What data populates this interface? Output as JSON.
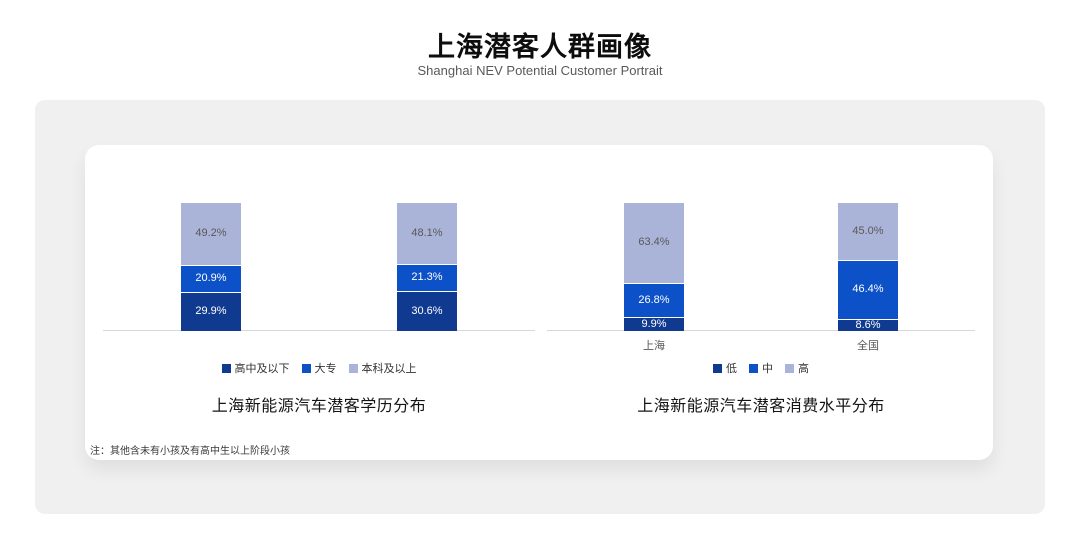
{
  "page": {
    "title": "上海潜客人群画像",
    "subtitle": "Shanghai NEV Potential Customer Portrait",
    "note": "注：其他含未有小孩及有高中生以上阶段小孩"
  },
  "colors": {
    "series_dark_blue": "#103990",
    "series_medium_blue": "#0c51c8",
    "series_light_periwinkle": "#aab4d8",
    "axis_line": "#d9d9d9",
    "panel_gray": "#f0f0f1",
    "card_white": "#ffffff"
  },
  "chart_data": [
    {
      "type": "bar",
      "stacked": true,
      "title": "上海新能源汽车潜客学历分布",
      "categories": [
        "",
        ""
      ],
      "series": [
        {
          "name": "高中及以下",
          "color": "#103990",
          "label_color": "#ffffff",
          "values": [
            29.9,
            30.6
          ]
        },
        {
          "name": "大专",
          "color": "#0c51c8",
          "label_color": "#ffffff",
          "values": [
            20.9,
            21.3
          ]
        },
        {
          "name": "本科及以上",
          "color": "#aab4d8",
          "label_color": "#595959",
          "values": [
            49.2,
            48.1
          ]
        }
      ],
      "xlabel": "",
      "ylabel": "",
      "ylim": [
        0,
        100
      ],
      "value_suffix": "%",
      "grid": false,
      "legend_position": "bottom"
    },
    {
      "type": "bar",
      "stacked": true,
      "title": "上海新能源汽车潜客消费水平分布",
      "categories": [
        "上海",
        "全国"
      ],
      "series": [
        {
          "name": "低",
          "color": "#103990",
          "label_color": "#ffffff",
          "values": [
            9.9,
            8.6
          ]
        },
        {
          "name": "中",
          "color": "#0c51c8",
          "label_color": "#ffffff",
          "values": [
            26.8,
            46.4
          ]
        },
        {
          "name": "高",
          "color": "#aab4d8",
          "label_color": "#595959",
          "values": [
            63.4,
            45.0
          ]
        }
      ],
      "xlabel": "",
      "ylabel": "",
      "ylim": [
        0,
        100
      ],
      "value_suffix": "%",
      "grid": false,
      "legend_position": "bottom"
    }
  ]
}
